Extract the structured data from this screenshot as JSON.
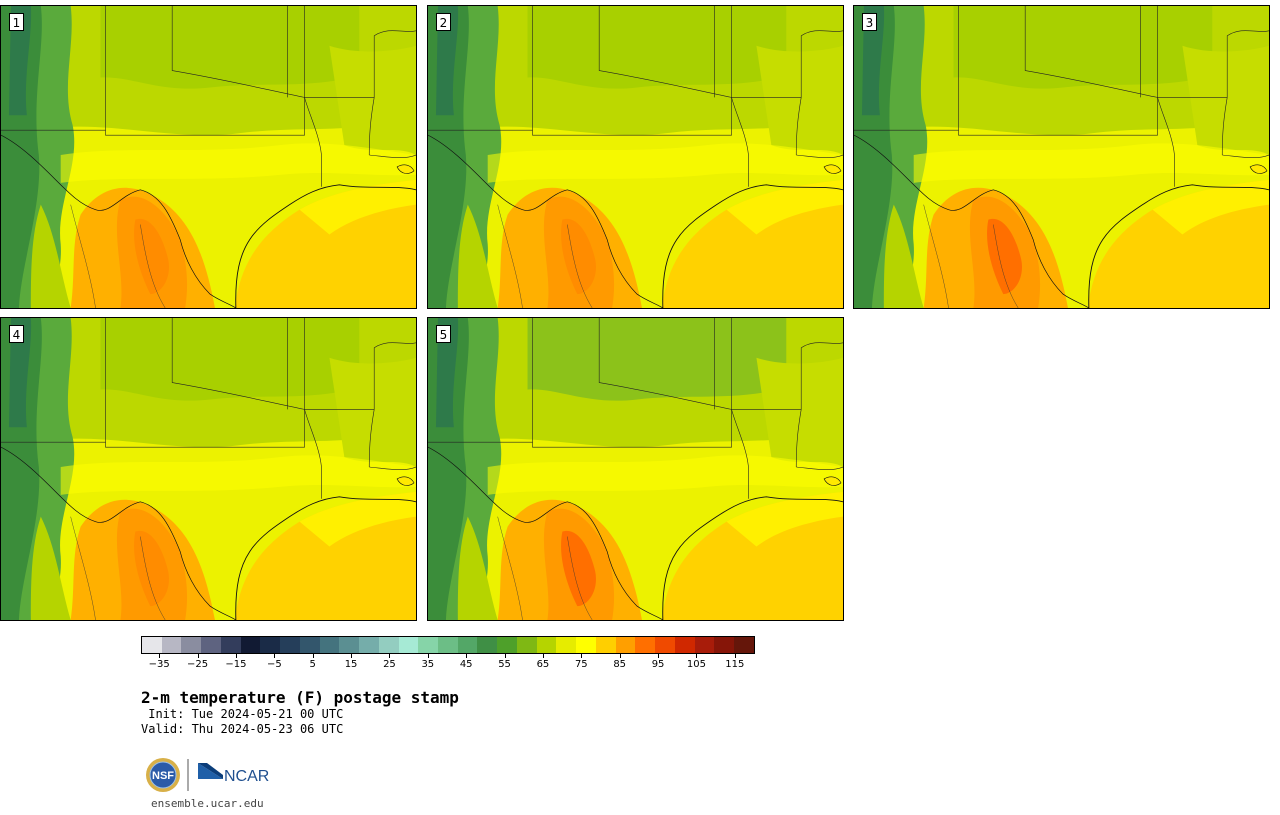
{
  "figure": {
    "title": "2-m temperature (F) postage stamp",
    "init": " Init: Tue 2024-05-21 00 UTC",
    "valid": "Valid: Thu 2024-05-23 06 UTC",
    "url": "ensemble.ucar.edu"
  },
  "panels": [
    {
      "label": "1"
    },
    {
      "label": "2"
    },
    {
      "label": "3"
    },
    {
      "label": "4"
    },
    {
      "label": "5"
    }
  ],
  "colorbar": {
    "ticks": [
      "−35",
      "−25",
      "−15",
      "−5",
      "5",
      "15",
      "25",
      "35",
      "45",
      "55",
      "65",
      "75",
      "85",
      "95",
      "105",
      "115"
    ],
    "colors": [
      "#e6e6ea",
      "#b7b7c4",
      "#8a8da0",
      "#5e6380",
      "#333d5c",
      "#111a33",
      "#1a2b47",
      "#253e5a",
      "#33566c",
      "#44737e",
      "#5b8f92",
      "#75adaa",
      "#93cdc0",
      "#a6ead5",
      "#86d4a8",
      "#6cbe86",
      "#53a767",
      "#3f8f45",
      "#4ea02a",
      "#7fb814",
      "#b5d400",
      "#e6ec00",
      "#ffff00",
      "#ffcf00",
      "#ff9f00",
      "#ff6f00",
      "#f04a00",
      "#d02800",
      "#a81c0a",
      "#861508",
      "#65160a"
    ]
  },
  "logos": {
    "nsf": "NSF",
    "ncar": "NCAR"
  }
}
